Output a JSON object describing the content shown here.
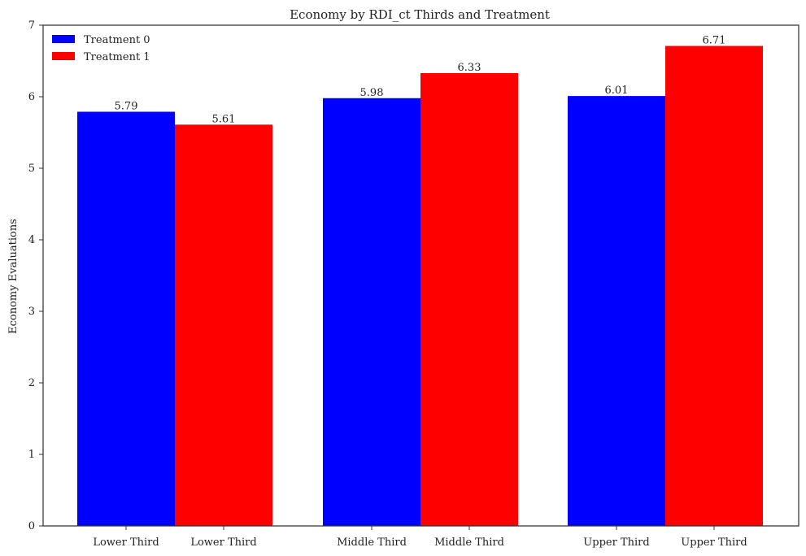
{
  "chart_data": {
    "type": "bar",
    "title": "Economy by RDI_ct Thirds and Treatment",
    "xlabel": "",
    "ylabel": "Economy Evaluations",
    "ylim": [
      0,
      7
    ],
    "yticks": [
      0,
      1,
      2,
      3,
      4,
      5,
      6,
      7
    ],
    "grid": false,
    "legend_position": "top-left",
    "categories": [
      "Lower Third",
      "Middle Third",
      "Upper Third"
    ],
    "series": [
      {
        "name": "Treatment 0",
        "color": "#0000ff",
        "values": [
          5.79,
          5.98,
          6.01
        ],
        "labels": [
          "5.79",
          "5.98",
          "6.01"
        ],
        "tick_labels": [
          "Lower Third",
          "Middle Third",
          "Upper Third"
        ]
      },
      {
        "name": "Treatment 1",
        "color": "#ff0000",
        "values": [
          5.61,
          6.33,
          6.71
        ],
        "labels": [
          "5.61",
          "6.33",
          "6.71"
        ],
        "tick_labels": [
          "Lower Third",
          "Middle Third",
          "Upper Third"
        ]
      }
    ]
  }
}
